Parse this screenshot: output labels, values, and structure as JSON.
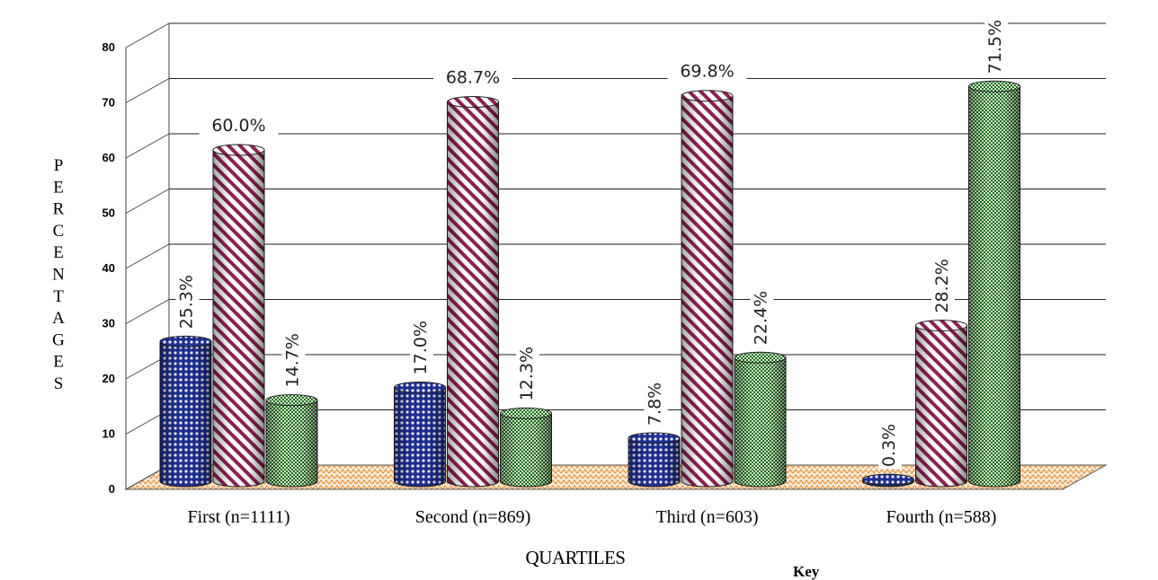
{
  "chart_data": {
    "type": "bar",
    "style": "3d-cylinder",
    "categories": [
      "First (n=1111)",
      "Second (n=869)",
      "Third (n=603)",
      "Fourth (n=588)"
    ],
    "series": [
      {
        "values": [
          25.3,
          17.0,
          7.8,
          0.3
        ],
        "labels": [
          "25.3%",
          "17.0%",
          "7.8%",
          "0.3%"
        ],
        "color": "#1f2f8f",
        "pattern": "dots"
      },
      {
        "values": [
          60.0,
          68.7,
          69.8,
          28.2
        ],
        "labels": [
          "60.0%",
          "68.7%",
          "69.8%",
          "28.2%"
        ],
        "color": "#8b2252",
        "pattern": "diagonal-stripes"
      },
      {
        "values": [
          14.7,
          12.3,
          22.4,
          71.5
        ],
        "labels": [
          "14.7%",
          "12.3%",
          "22.4%",
          "71.5%"
        ],
        "color": "#1f6b1f",
        "pattern": "checker"
      }
    ],
    "ylabel": "PERCENTAGES",
    "xlabel": "QUARTILES",
    "ylim": [
      0,
      80
    ],
    "yticks": [
      "0",
      "10",
      "20",
      "30",
      "40",
      "50",
      "60",
      "70",
      "80"
    ],
    "grid": true,
    "legend_title": "Key"
  }
}
